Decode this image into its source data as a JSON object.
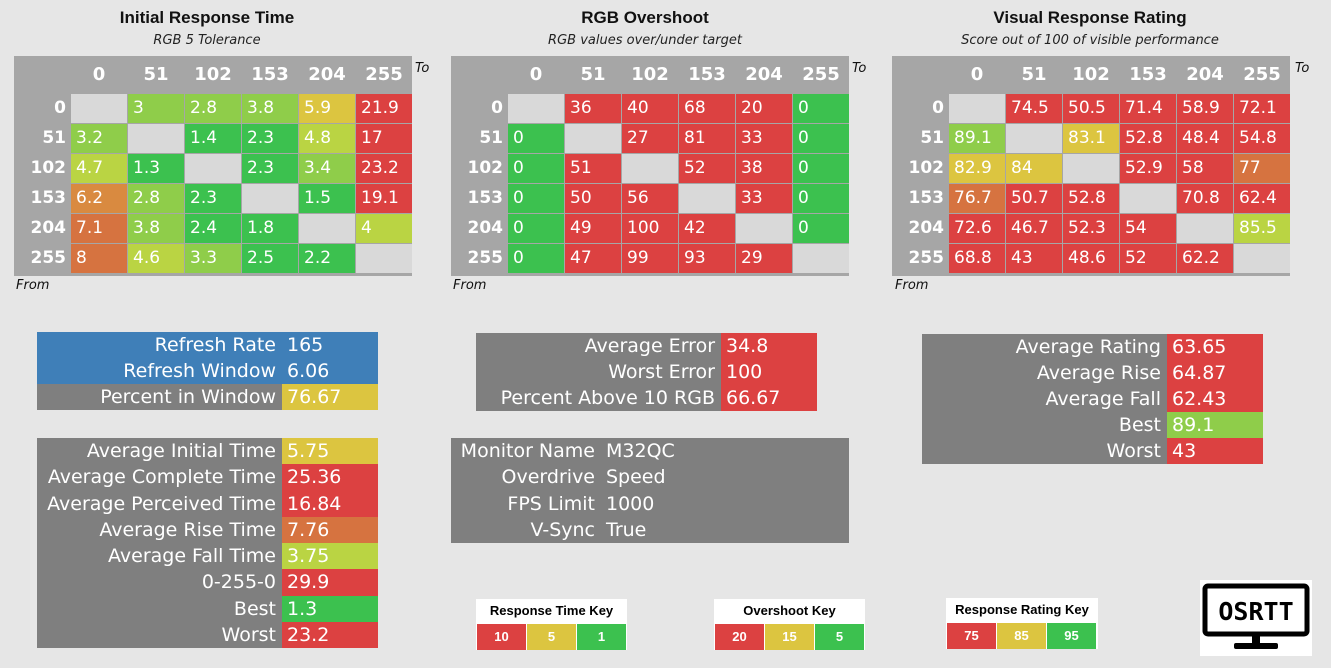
{
  "colors": {
    "red": "#dc4141",
    "green": "#3cc14f",
    "light_green": "#8fcd4a",
    "yellow_green": "#bad443",
    "yellow": "#dcc540",
    "orange": "#d98a40",
    "dark_orange": "#d67340",
    "blue": "#3f7fb8",
    "gray": "#7f7f7f",
    "diag": "#d9d9d9"
  },
  "labels": {
    "to": "To",
    "from": "From"
  },
  "headers": [
    "0",
    "51",
    "102",
    "153",
    "204",
    "255"
  ],
  "matrices": [
    {
      "title": "Initial Response Time",
      "subtitle": "RGB 5 Tolerance",
      "values": [
        [
          "",
          "3",
          "2.8",
          "3.8",
          "5.9",
          "21.9"
        ],
        [
          "3.2",
          "",
          "1.4",
          "2.3",
          "4.8",
          "17"
        ],
        [
          "4.7",
          "1.3",
          "",
          "2.3",
          "3.4",
          "23.2"
        ],
        [
          "6.2",
          "2.8",
          "2.3",
          "",
          "1.5",
          "19.1"
        ],
        [
          "7.1",
          "3.8",
          "2.4",
          "1.8",
          "",
          "4"
        ],
        [
          "8",
          "4.6",
          "3.3",
          "2.5",
          "2.2",
          ""
        ]
      ],
      "colors": [
        [
          "diag",
          "light_green",
          "light_green",
          "light_green",
          "yellow",
          "red"
        ],
        [
          "light_green",
          "diag",
          "green",
          "green",
          "yellow_green",
          "red"
        ],
        [
          "yellow_green",
          "green",
          "diag",
          "green",
          "light_green",
          "red"
        ],
        [
          "orange",
          "light_green",
          "green",
          "diag",
          "green",
          "red"
        ],
        [
          "dark_orange",
          "light_green",
          "green",
          "green",
          "diag",
          "yellow_green"
        ],
        [
          "dark_orange",
          "yellow_green",
          "light_green",
          "green",
          "green",
          "diag"
        ]
      ]
    },
    {
      "title": "RGB Overshoot",
      "subtitle": "RGB values over/under target",
      "values": [
        [
          "",
          "36",
          "40",
          "68",
          "20",
          "0"
        ],
        [
          "0",
          "",
          "27",
          "81",
          "33",
          "0"
        ],
        [
          "0",
          "51",
          "",
          "52",
          "38",
          "0"
        ],
        [
          "0",
          "50",
          "56",
          "",
          "33",
          "0"
        ],
        [
          "0",
          "49",
          "100",
          "42",
          "",
          "0"
        ],
        [
          "0",
          "47",
          "99",
          "93",
          "29",
          ""
        ]
      ],
      "colors": [
        [
          "diag",
          "red",
          "red",
          "red",
          "red",
          "green"
        ],
        [
          "green",
          "diag",
          "red",
          "red",
          "red",
          "green"
        ],
        [
          "green",
          "red",
          "diag",
          "red",
          "red",
          "green"
        ],
        [
          "green",
          "red",
          "red",
          "diag",
          "red",
          "green"
        ],
        [
          "green",
          "red",
          "red",
          "red",
          "diag",
          "green"
        ],
        [
          "green",
          "red",
          "red",
          "red",
          "red",
          "diag"
        ]
      ]
    },
    {
      "title": "Visual Response Rating",
      "subtitle": "Score out of 100 of visible performance",
      "values": [
        [
          "",
          "74.5",
          "50.5",
          "71.4",
          "58.9",
          "72.1"
        ],
        [
          "89.1",
          "",
          "83.1",
          "52.8",
          "48.4",
          "54.8"
        ],
        [
          "82.9",
          "84",
          "",
          "52.9",
          "58",
          "77"
        ],
        [
          "76.7",
          "50.7",
          "52.8",
          "",
          "70.8",
          "62.4"
        ],
        [
          "72.6",
          "46.7",
          "52.3",
          "54",
          "",
          "85.5"
        ],
        [
          "68.8",
          "43",
          "48.6",
          "52",
          "62.2",
          ""
        ]
      ],
      "colors": [
        [
          "diag",
          "red",
          "red",
          "red",
          "red",
          "red"
        ],
        [
          "light_green",
          "diag",
          "yellow",
          "red",
          "red",
          "red"
        ],
        [
          "yellow",
          "yellow",
          "diag",
          "red",
          "red",
          "dark_orange"
        ],
        [
          "dark_orange",
          "red",
          "red",
          "diag",
          "red",
          "red"
        ],
        [
          "red",
          "red",
          "red",
          "red",
          "diag",
          "yellow_green"
        ],
        [
          "red",
          "red",
          "red",
          "red",
          "red",
          "diag"
        ]
      ]
    }
  ],
  "refresh_panel": [
    {
      "label": "Refresh Rate",
      "value": "165",
      "bg": "blue",
      "vbg": "blue"
    },
    {
      "label": "Refresh Window",
      "value": "6.06",
      "bg": "blue",
      "vbg": "blue"
    },
    {
      "label": "Percent in Window",
      "value": "76.67",
      "bg": "gray",
      "vbg": "yellow"
    }
  ],
  "time_panel": [
    {
      "label": "Average Initial Time",
      "value": "5.75",
      "vbg": "yellow"
    },
    {
      "label": "Average Complete Time",
      "value": "25.36",
      "vbg": "red"
    },
    {
      "label": "Average Perceived Time",
      "value": "16.84",
      "vbg": "red"
    },
    {
      "label": "Average Rise Time",
      "value": "7.76",
      "vbg": "dark_orange"
    },
    {
      "label": "Average Fall Time",
      "value": "3.75",
      "vbg": "yellow_green"
    },
    {
      "label": "0-255-0",
      "value": "29.9",
      "vbg": "red"
    },
    {
      "label": "Best",
      "value": "1.3",
      "vbg": "green"
    },
    {
      "label": "Worst",
      "value": "23.2",
      "vbg": "red"
    }
  ],
  "error_panel": [
    {
      "label": "Average Error",
      "value": "34.8",
      "vbg": "red"
    },
    {
      "label": "Worst Error",
      "value": "100",
      "vbg": "red"
    },
    {
      "label": "Percent Above 10 RGB",
      "value": "66.67",
      "vbg": "red"
    }
  ],
  "monitor_panel": [
    {
      "label": "Monitor Name",
      "value": "M32QC"
    },
    {
      "label": "Overdrive",
      "value": "Speed"
    },
    {
      "label": "FPS Limit",
      "value": "1000"
    },
    {
      "label": "V-Sync",
      "value": "True"
    }
  ],
  "rating_panel": [
    {
      "label": "Average Rating",
      "value": "63.65",
      "vbg": "red"
    },
    {
      "label": "Average Rise",
      "value": "64.87",
      "vbg": "red"
    },
    {
      "label": "Average Fall",
      "value": "62.43",
      "vbg": "red"
    },
    {
      "label": "Best",
      "value": "89.1",
      "vbg": "light_green"
    },
    {
      "label": "Worst",
      "value": "43",
      "vbg": "red"
    }
  ],
  "keys": [
    {
      "title": "Response Time Key",
      "values": [
        "10",
        "5",
        "1"
      ]
    },
    {
      "title": "Overshoot Key",
      "values": [
        "20",
        "15",
        "5"
      ]
    },
    {
      "title": "Response Rating Key",
      "values": [
        "75",
        "85",
        "95"
      ]
    }
  ],
  "logo": {
    "text": "OSRTT"
  }
}
